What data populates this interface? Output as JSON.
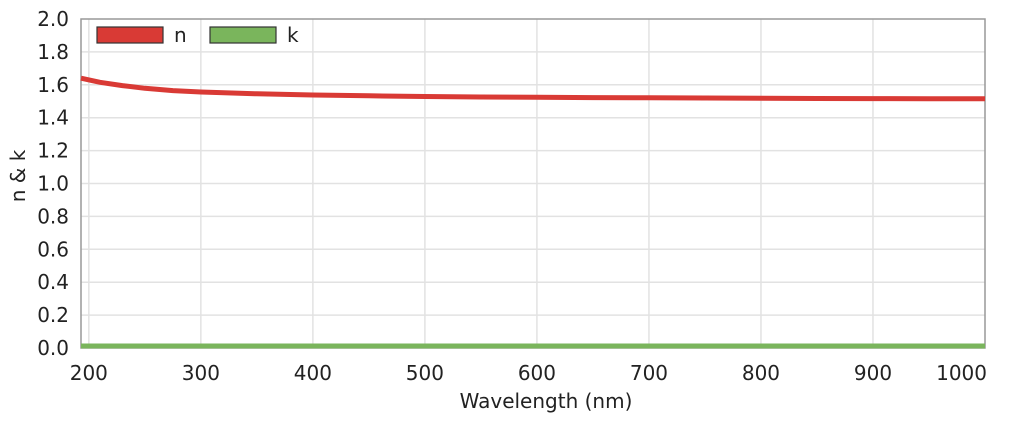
{
  "chart_data": {
    "type": "line",
    "title": "",
    "xlabel": "Wavelength (nm)",
    "ylabel": "n & k",
    "xlim": [
      193,
      1000
    ],
    "ylim": [
      0,
      2.0
    ],
    "xticks": [
      "200",
      "300",
      "400",
      "500",
      "600",
      "700",
      "800",
      "900",
      "1000"
    ],
    "yticks": [
      "0.0",
      "0.2",
      "0.4",
      "0.6",
      "0.8",
      "1.0",
      "1.2",
      "1.4",
      "1.6",
      "1.8",
      "2.0"
    ],
    "grid": true,
    "legend_position": "top-left",
    "series": [
      {
        "name": "n",
        "color": "#d93a35",
        "x": [
          193,
          210,
          230,
          250,
          275,
          300,
          350,
          400,
          450,
          500,
          550,
          600,
          650,
          700,
          750,
          800,
          850,
          900,
          950,
          1000
        ],
        "y": [
          1.64,
          1.615,
          1.595,
          1.579,
          1.565,
          1.556,
          1.545,
          1.538,
          1.533,
          1.529,
          1.526,
          1.524,
          1.522,
          1.521,
          1.52,
          1.518,
          1.517,
          1.516,
          1.515,
          1.515
        ]
      },
      {
        "name": "k",
        "color": "#7ab55c",
        "x": [
          193,
          300,
          400,
          500,
          600,
          700,
          800,
          900,
          1000
        ],
        "y": [
          0,
          0,
          0,
          0,
          0,
          0,
          0,
          0,
          0
        ]
      }
    ]
  }
}
